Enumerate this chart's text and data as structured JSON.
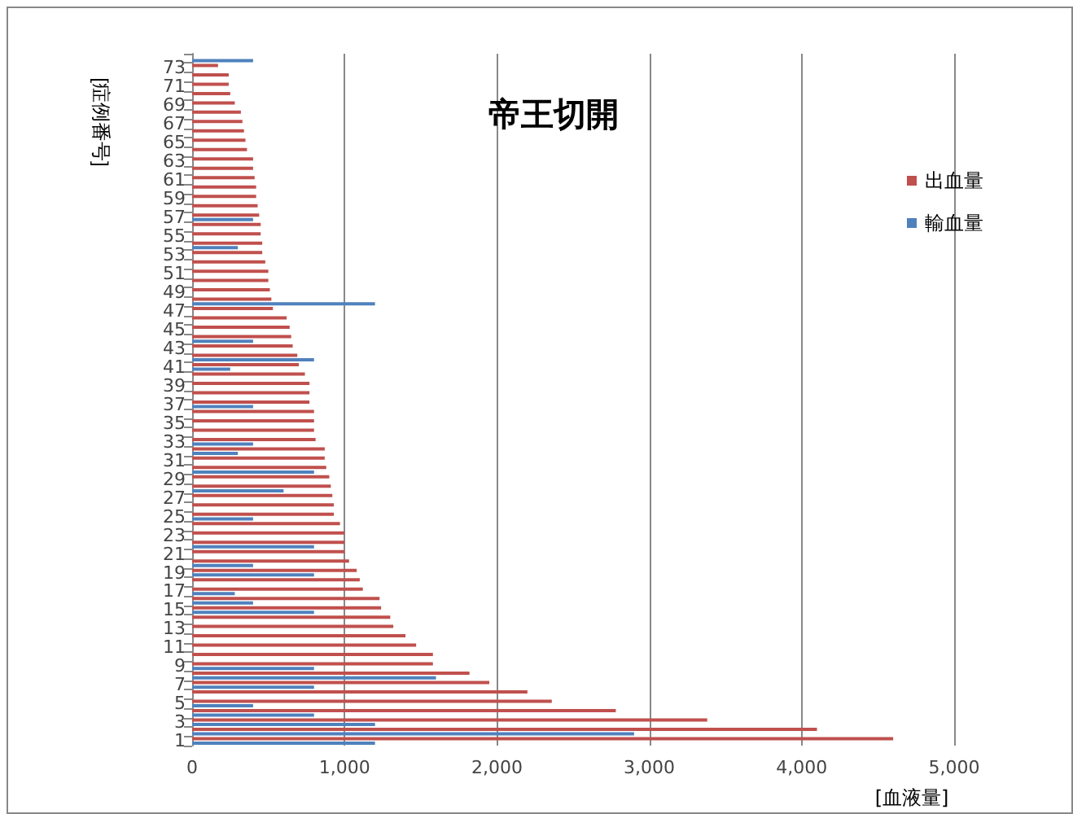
{
  "chart_data": {
    "type": "bar",
    "orientation": "horizontal",
    "title": "帝王切開",
    "ylabel": "[症例番号]",
    "xlabel": "[血液量]",
    "categories": [
      null,
      "73",
      null,
      "71",
      null,
      "69",
      null,
      "67",
      null,
      "65",
      null,
      "63",
      null,
      "61",
      null,
      "59",
      null,
      "57",
      null,
      "55",
      null,
      "53",
      null,
      "51",
      null,
      "49",
      null,
      "47",
      null,
      "45",
      null,
      "43",
      null,
      "41",
      null,
      "39",
      null,
      "37",
      null,
      "35",
      null,
      "33",
      null,
      "31",
      null,
      "29",
      null,
      "27",
      null,
      "25",
      null,
      "23",
      null,
      "21",
      null,
      "19",
      null,
      "17",
      null,
      "15",
      null,
      "13",
      null,
      "11",
      null,
      "9",
      null,
      "7",
      null,
      "5",
      null,
      "3",
      null,
      "1"
    ],
    "series": [
      {
        "name": "出血量",
        "color": "#c0504d",
        "values": [
          null,
          170,
          240,
          240,
          250,
          280,
          320,
          330,
          340,
          350,
          360,
          400,
          400,
          410,
          420,
          420,
          430,
          440,
          450,
          450,
          460,
          460,
          480,
          500,
          500,
          510,
          520,
          530,
          620,
          640,
          650,
          660,
          690,
          700,
          740,
          770,
          770,
          770,
          800,
          800,
          800,
          810,
          870,
          870,
          880,
          900,
          910,
          920,
          930,
          930,
          970,
          1000,
          1000,
          1000,
          1030,
          1080,
          1100,
          1120,
          1230,
          1240,
          1300,
          1320,
          1400,
          1470,
          1580,
          1580,
          1820,
          1950,
          2200,
          2360,
          2780,
          3380,
          4100,
          4600
        ]
      },
      {
        "name": "輸血量",
        "color": "#4f81bd",
        "values": [
          400,
          null,
          null,
          null,
          null,
          null,
          null,
          null,
          null,
          null,
          null,
          null,
          null,
          null,
          null,
          null,
          null,
          400,
          null,
          null,
          300,
          null,
          null,
          null,
          null,
          null,
          1200,
          null,
          null,
          null,
          400,
          null,
          800,
          250,
          null,
          null,
          null,
          400,
          null,
          null,
          null,
          400,
          300,
          null,
          800,
          null,
          600,
          null,
          null,
          400,
          null,
          null,
          800,
          null,
          400,
          800,
          null,
          280,
          400,
          800,
          null,
          null,
          null,
          null,
          null,
          800,
          1600,
          800,
          null,
          400,
          800,
          1200,
          2900,
          1200
        ]
      }
    ],
    "xlim": [
      0,
      5000
    ],
    "xticks": [
      0,
      {
        "value": 1000,
        "label": "1,000"
      },
      {
        "value": 2000,
        "label": "2,000"
      },
      {
        "value": 3000,
        "label": "3,000"
      },
      {
        "value": 4000,
        "label": "4,000"
      },
      {
        "value": 5000,
        "label": "5,000"
      }
    ],
    "grid": "x",
    "legend": "right"
  }
}
